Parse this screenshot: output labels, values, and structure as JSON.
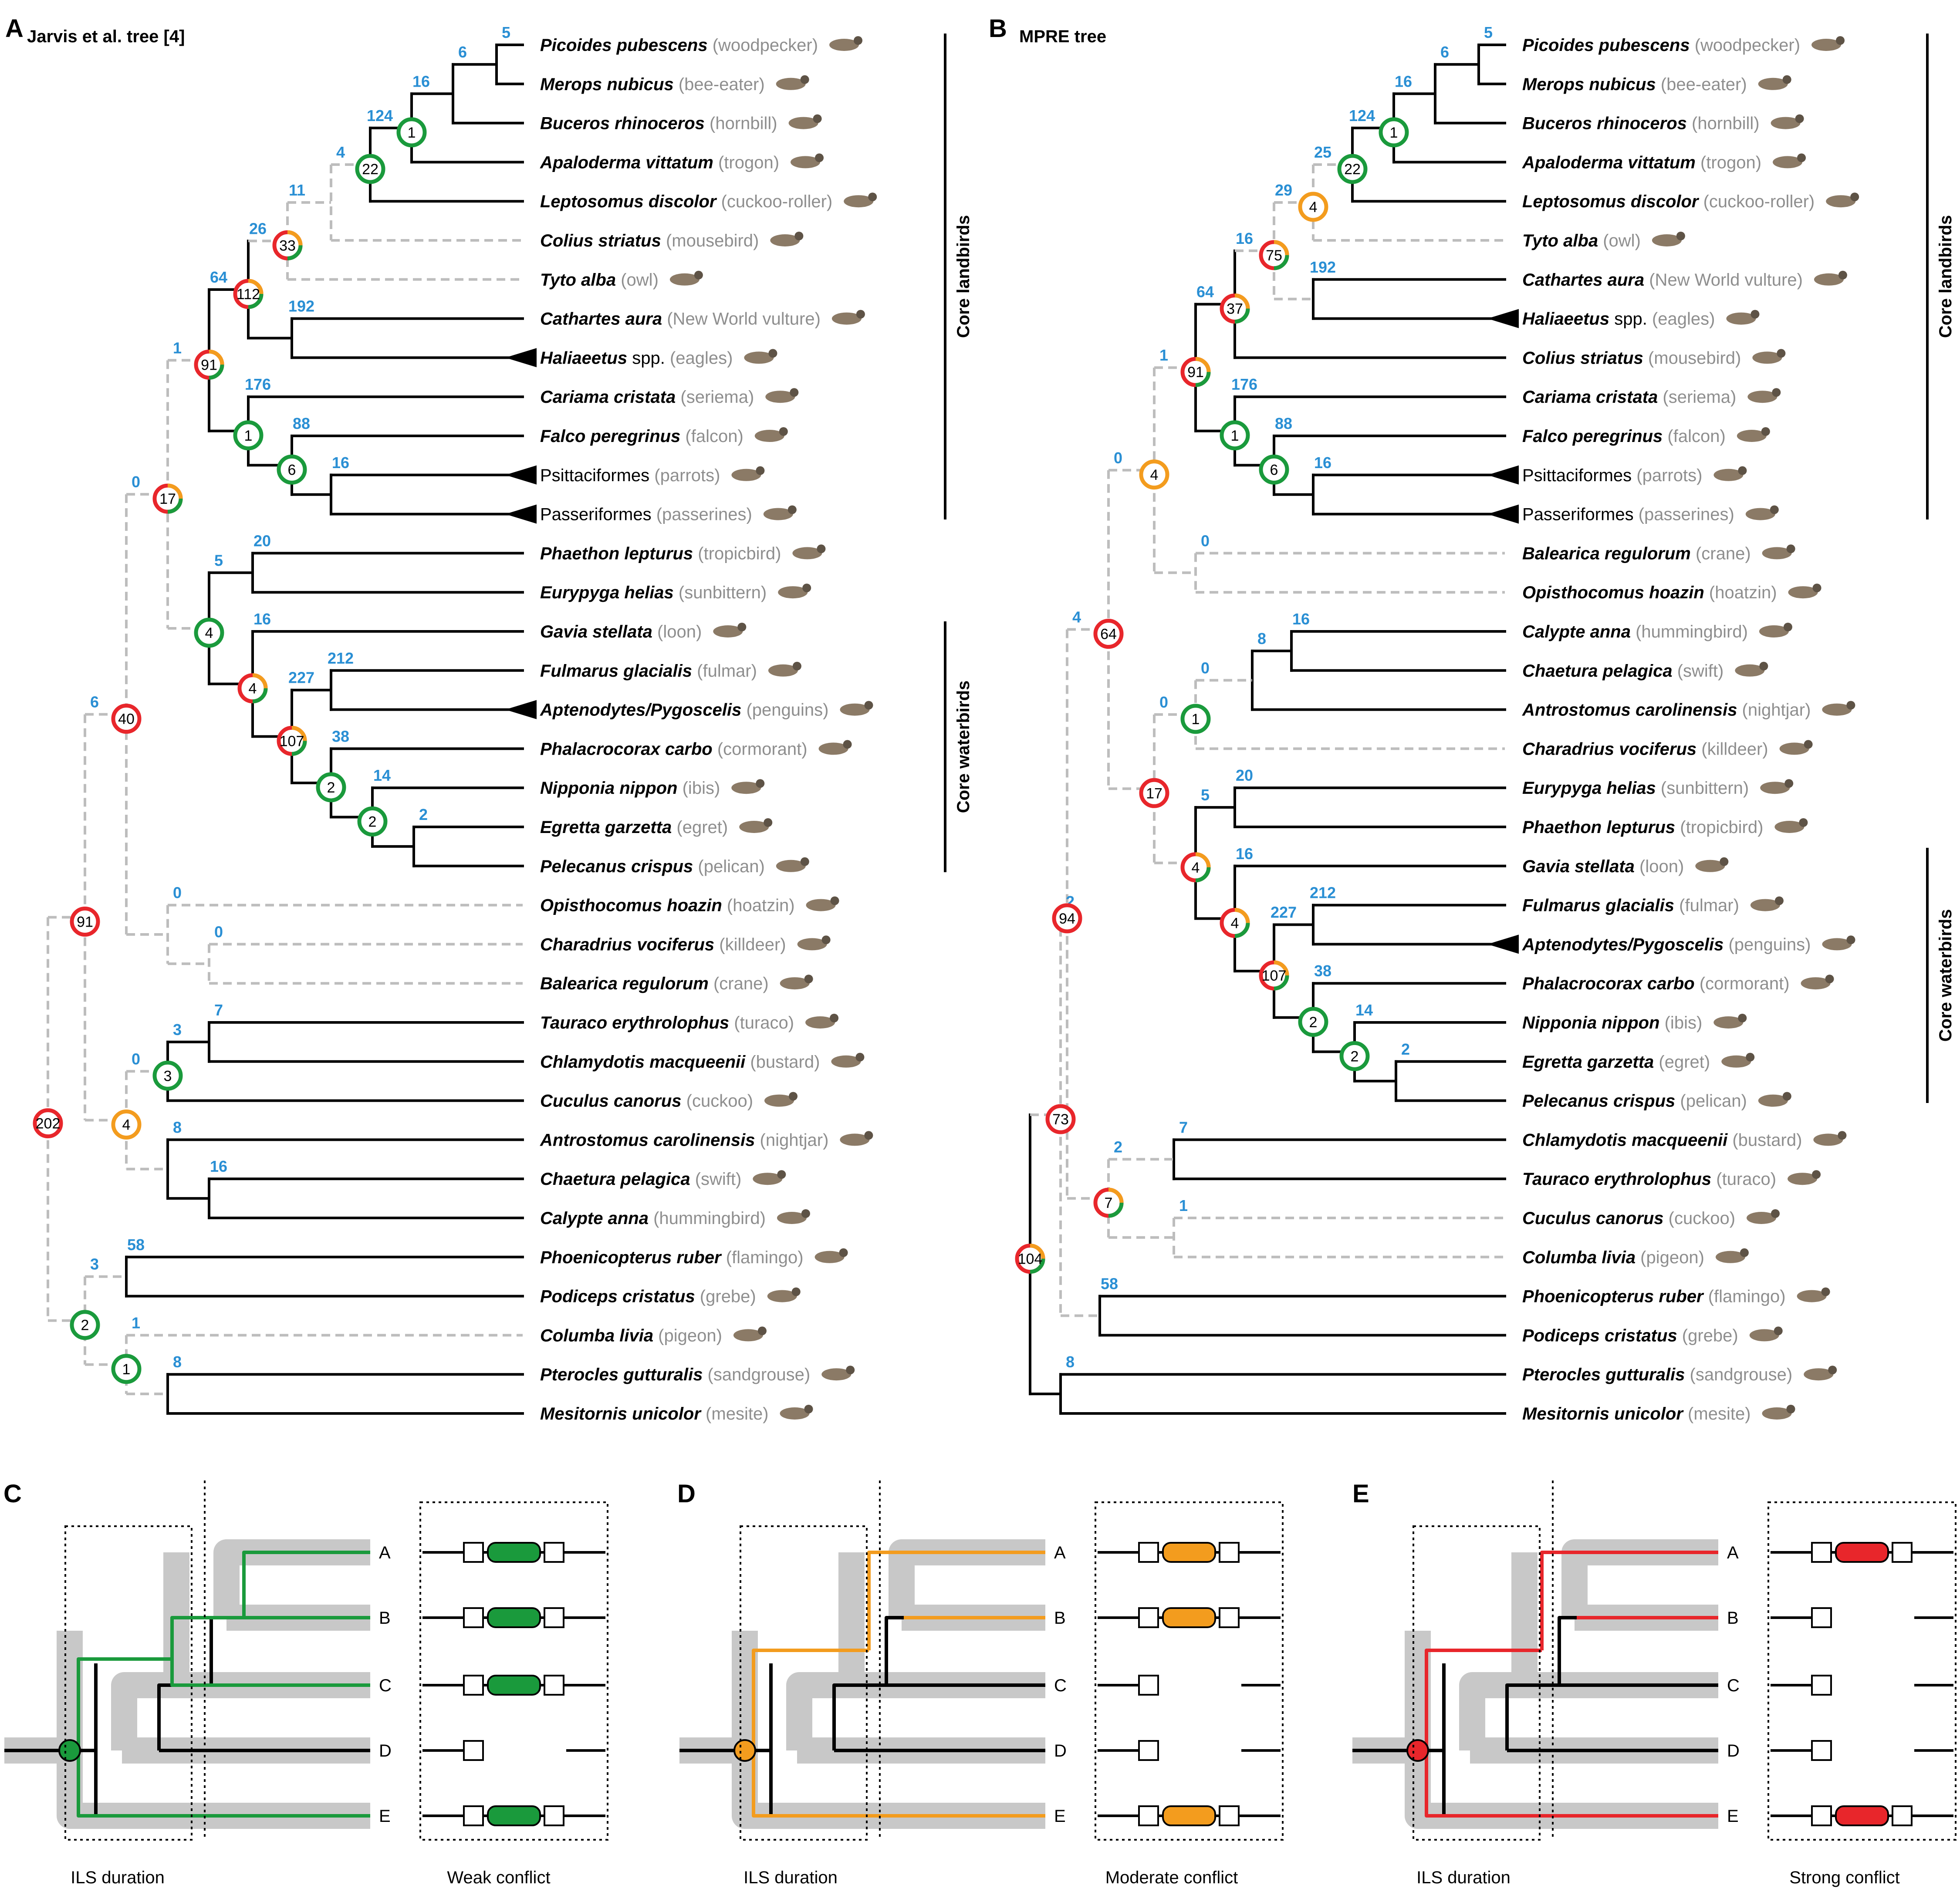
{
  "panels": [
    {
      "id": "A",
      "title": "Jarvis et al. tree [4]"
    },
    {
      "id": "B",
      "title": "MPRE tree"
    },
    {
      "id": "C",
      "duration": "ILS duration",
      "conflict": "Weak conflict"
    },
    {
      "id": "D",
      "duration": "ILS duration",
      "conflict": "Moderate conflict"
    },
    {
      "id": "E",
      "duration": "ILS duration",
      "conflict": "Strong conflict"
    }
  ],
  "clades": {
    "landbirds": "Core landbirds",
    "waterbirds": "Core waterbirds"
  },
  "colors": {
    "green": "#1a9a3c",
    "orange": "#f39c1e",
    "red": "#e8262b",
    "blue": "#2a8fd4",
    "gray": "#bdbdbd"
  },
  "leaf_labels": [
    "A",
    "B",
    "C",
    "D",
    "E"
  ],
  "taxaA": [
    {
      "sp": "Picoides pubescens",
      "c": "(woodpecker)",
      "i": true
    },
    {
      "sp": "Merops nubicus",
      "c": "(bee-eater)",
      "i": true
    },
    {
      "sp": "Buceros rhinoceros",
      "c": "(hornbill)",
      "i": true
    },
    {
      "sp": "Apaloderma vittatum",
      "c": "(trogon)",
      "i": true
    },
    {
      "sp": "Leptosomus discolor",
      "c": "(cuckoo-roller)",
      "i": true
    },
    {
      "sp": "Colius striatus",
      "c": "(mousebird)",
      "i": true
    },
    {
      "sp": "Tyto alba",
      "c": "(owl)",
      "i": true
    },
    {
      "sp": "Cathartes aura",
      "c": "(New World vulture)",
      "i": true
    },
    {
      "sp": "Haliaeetus",
      "ex": "spp.",
      "c": "(eagles)",
      "i": true,
      "tri": true
    },
    {
      "sp": "Cariama cristata",
      "c": "(seriema)",
      "i": true
    },
    {
      "sp": "Falco peregrinus",
      "c": "(falcon)",
      "i": true
    },
    {
      "sp": "Psittaciformes",
      "c": "(parrots)",
      "i": false,
      "tri": true
    },
    {
      "sp": "Passeriformes",
      "c": "(passerines)",
      "i": false,
      "tri": true
    },
    {
      "sp": "Phaethon lepturus",
      "c": "(tropicbird)",
      "i": true
    },
    {
      "sp": "Eurypyga helias",
      "c": "(sunbittern)",
      "i": true
    },
    {
      "sp": "Gavia stellata",
      "c": "(loon)",
      "i": true
    },
    {
      "sp": "Fulmarus glacialis",
      "c": "(fulmar)",
      "i": true
    },
    {
      "sp": "Aptenodytes/Pygoscelis",
      "c": "(penguins)",
      "i": true,
      "tri": true
    },
    {
      "sp": "Phalacrocorax carbo",
      "c": "(cormorant)",
      "i": true
    },
    {
      "sp": "Nipponia nippon",
      "c": "(ibis)",
      "i": true
    },
    {
      "sp": "Egretta garzetta",
      "c": "(egret)",
      "i": true
    },
    {
      "sp": "Pelecanus crispus",
      "c": "(pelican)",
      "i": true
    },
    {
      "sp": "Opisthocomus hoazin",
      "c": "(hoatzin)",
      "i": true
    },
    {
      "sp": "Charadrius vociferus",
      "c": "(killdeer)",
      "i": true
    },
    {
      "sp": "Balearica regulorum",
      "c": "(crane)",
      "i": true
    },
    {
      "sp": "Tauraco erythrolophus",
      "c": "(turaco)",
      "i": true
    },
    {
      "sp": "Chlamydotis macqueenii",
      "c": "(bustard)",
      "i": true
    },
    {
      "sp": "Cuculus canorus",
      "c": "(cuckoo)",
      "i": true
    },
    {
      "sp": "Antrostomus carolinensis",
      "c": "(nightjar)",
      "i": true
    },
    {
      "sp": "Chaetura pelagica",
      "c": "(swift)",
      "i": true
    },
    {
      "sp": "Calypte anna",
      "c": "(hummingbird)",
      "i": true
    },
    {
      "sp": "Phoenicopterus ruber",
      "c": "(flamingo)",
      "i": true
    },
    {
      "sp": "Podiceps cristatus",
      "c": "(grebe)",
      "i": true
    },
    {
      "sp": "Columba livia",
      "c": "(pigeon)",
      "i": true
    },
    {
      "sp": "Pterocles gutturalis",
      "c": "(sandgrouse)",
      "i": true
    },
    {
      "sp": "Mesitornis unicolor",
      "c": "(mesite)",
      "i": true
    }
  ],
  "taxaB": [
    {
      "sp": "Picoides pubescens",
      "c": "(woodpecker)",
      "i": true
    },
    {
      "sp": "Merops nubicus",
      "c": "(bee-eater)",
      "i": true
    },
    {
      "sp": "Buceros rhinoceros",
      "c": "(hornbill)",
      "i": true
    },
    {
      "sp": "Apaloderma vittatum",
      "c": "(trogon)",
      "i": true
    },
    {
      "sp": "Leptosomus discolor",
      "c": "(cuckoo-roller)",
      "i": true
    },
    {
      "sp": "Tyto alba",
      "c": "(owl)",
      "i": true
    },
    {
      "sp": "Cathartes aura",
      "c": "(New World vulture)",
      "i": true
    },
    {
      "sp": "Haliaeetus",
      "ex": "spp.",
      "c": "(eagles)",
      "i": true,
      "tri": true
    },
    {
      "sp": "Colius striatus",
      "c": "(mousebird)",
      "i": true
    },
    {
      "sp": "Cariama cristata",
      "c": "(seriema)",
      "i": true
    },
    {
      "sp": "Falco peregrinus",
      "c": "(falcon)",
      "i": true
    },
    {
      "sp": "Psittaciformes",
      "c": "(parrots)",
      "i": false,
      "tri": true
    },
    {
      "sp": "Passeriformes",
      "c": "(passerines)",
      "i": false,
      "tri": true
    },
    {
      "sp": "Balearica regulorum",
      "c": "(crane)",
      "i": true
    },
    {
      "sp": "Opisthocomus hoazin",
      "c": "(hoatzin)",
      "i": true
    },
    {
      "sp": "Calypte anna",
      "c": "(hummingbird)",
      "i": true
    },
    {
      "sp": "Chaetura pelagica",
      "c": "(swift)",
      "i": true
    },
    {
      "sp": "Antrostomus carolinensis",
      "c": "(nightjar)",
      "i": true
    },
    {
      "sp": "Charadrius vociferus",
      "c": "(killdeer)",
      "i": true
    },
    {
      "sp": "Eurypyga helias",
      "c": "(sunbittern)",
      "i": true
    },
    {
      "sp": "Phaethon lepturus",
      "c": "(tropicbird)",
      "i": true
    },
    {
      "sp": "Gavia stellata",
      "c": "(loon)",
      "i": true
    },
    {
      "sp": "Fulmarus glacialis",
      "c": "(fulmar)",
      "i": true
    },
    {
      "sp": "Aptenodytes/Pygoscelis",
      "c": "(penguins)",
      "i": true,
      "tri": true
    },
    {
      "sp": "Phalacrocorax carbo",
      "c": "(cormorant)",
      "i": true
    },
    {
      "sp": "Nipponia nippon",
      "c": "(ibis)",
      "i": true
    },
    {
      "sp": "Egretta garzetta",
      "c": "(egret)",
      "i": true
    },
    {
      "sp": "Pelecanus crispus",
      "c": "(pelican)",
      "i": true
    },
    {
      "sp": "Chlamydotis macqueenii",
      "c": "(bustard)",
      "i": true
    },
    {
      "sp": "Tauraco erythrolophus",
      "c": "(turaco)",
      "i": true
    },
    {
      "sp": "Cuculus canorus",
      "c": "(cuckoo)",
      "i": true
    },
    {
      "sp": "Columba livia",
      "c": "(pigeon)",
      "i": true
    },
    {
      "sp": "Phoenicopterus ruber",
      "c": "(flamingo)",
      "i": true
    },
    {
      "sp": "Podiceps cristatus",
      "c": "(grebe)",
      "i": true
    },
    {
      "sp": "Pterocles gutturalis",
      "c": "(sandgrouse)",
      "i": true
    },
    {
      "sp": "Mesitornis unicolor",
      "c": "(mesite)",
      "i": true
    }
  ],
  "branchA": [
    "5",
    "6",
    "16",
    "124",
    "4",
    "11",
    "26",
    "192",
    "64",
    "176",
    "88",
    "16",
    "1",
    "20",
    "5",
    "16",
    "212",
    "227",
    "38",
    "14",
    "2",
    "0",
    "0",
    "6",
    "0",
    "7",
    "3",
    "0",
    "8",
    "16",
    "58",
    "3",
    "1",
    "8"
  ],
  "branchB": [
    "5",
    "6",
    "16",
    "124",
    "25",
    "29",
    "192",
    "16",
    "64",
    "176",
    "88",
    "16",
    "1",
    "0",
    "16",
    "8",
    "0",
    "20",
    "5",
    "16",
    "212",
    "227",
    "38",
    "14",
    "2",
    "0",
    "0",
    "4",
    "7",
    "2",
    "1",
    "2",
    "58",
    "8"
  ],
  "circA": [
    "1",
    "22",
    "33",
    "112",
    "91",
    "1",
    "6",
    "17",
    "4",
    "4",
    "107",
    "2",
    "2",
    "40",
    "91",
    "3",
    "4",
    "202",
    "2",
    "1"
  ],
  "circB": [
    "1",
    "22",
    "4",
    "75",
    "37",
    "91",
    "1",
    "6",
    "4",
    "1",
    "17",
    "4",
    "4",
    "107",
    "2",
    "2",
    "64",
    "94",
    "7",
    "73",
    "104"
  ]
}
